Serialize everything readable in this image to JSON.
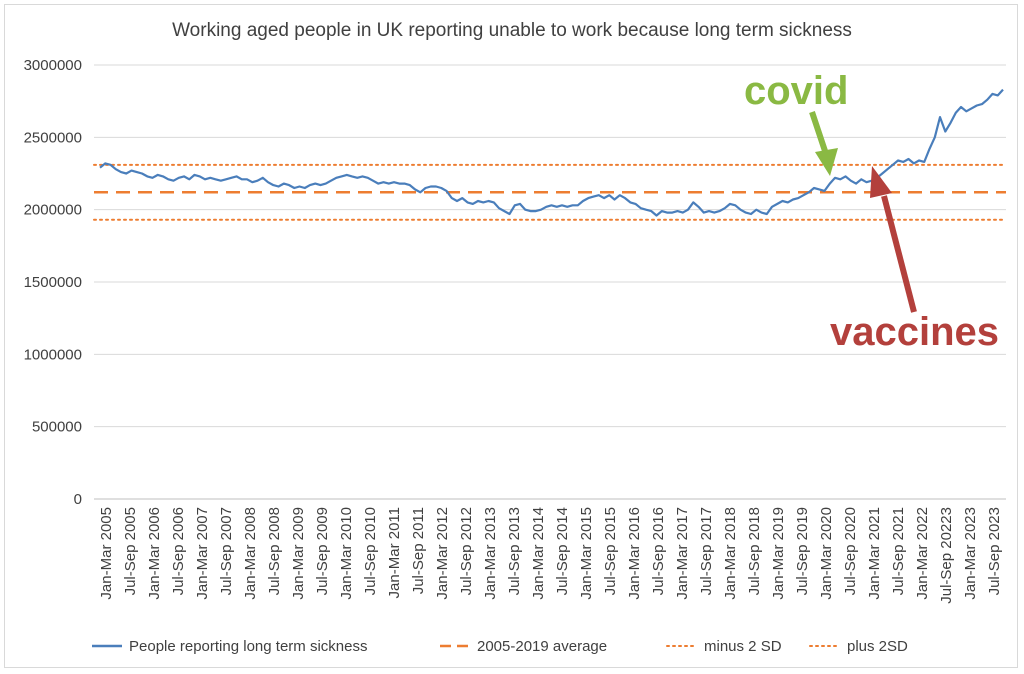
{
  "chart_data": {
    "type": "line",
    "title": "Working aged people in UK reporting unable to work because long term sickness",
    "xlabel": "",
    "ylabel": "",
    "ylim": [
      0,
      3000000
    ],
    "yticks": [
      "0",
      "500000",
      "1000000",
      "1500000",
      "2000000",
      "2500000",
      "3000000"
    ],
    "ytick_values": [
      0,
      500000,
      1000000,
      1500000,
      2000000,
      2500000,
      3000000
    ],
    "xtick_labels": [
      "Jan-Mar 2005",
      "Jul-Sep 2005",
      "Jan-Mar 2006",
      "Jul-Sep 2006",
      "Jan-Mar 2007",
      "Jul-Sep 2007",
      "Jan-Mar 2008",
      "Jul-Sep 2008",
      "Jan-Mar 2009",
      "Jul-Sep 2009",
      "Jan-Mar 2010",
      "Jul-Sep 2010",
      "Jan-Mar 2011",
      "Jul-Sep 2011",
      "Jan-Mar 2012",
      "Jul-Sep 2012",
      "Jan-Mar 2013",
      "Jul-Sep 2013",
      "Jan-Mar 2014",
      "Jul-Sep 2014",
      "Jan-Mar 2015",
      "Jul-Sep 2015",
      "Jan-Mar 2016",
      "Jul-Sep 2016",
      "Jan-Mar 2017",
      "Jul-Sep 2017",
      "Jan-Mar 2018",
      "Jul-Sep 2018",
      "Jan-Mar 2019",
      "Jul-Sep 2019",
      "Jan-Mar 2020",
      "Jul-Sep 2020",
      "Jan-Mar 2021",
      "Jul-Sep 2021",
      "Jan-Mar 2022",
      "Jul-Sep 20223",
      "Jan-Mar 2023",
      "Jul-Sep 2023"
    ],
    "grid": true,
    "legend_position": "bottom",
    "series": [
      {
        "name": "People reporting long term sickness",
        "color": "#4a7ebb",
        "style": "solid",
        "values": [
          2290000,
          2320000,
          2310000,
          2280000,
          2260000,
          2250000,
          2270000,
          2260000,
          2250000,
          2230000,
          2220000,
          2240000,
          2230000,
          2210000,
          2200000,
          2220000,
          2230000,
          2210000,
          2240000,
          2230000,
          2210000,
          2220000,
          2210000,
          2200000,
          2210000,
          2220000,
          2230000,
          2210000,
          2210000,
          2190000,
          2200000,
          2220000,
          2190000,
          2170000,
          2160000,
          2180000,
          2170000,
          2150000,
          2160000,
          2150000,
          2170000,
          2180000,
          2170000,
          2180000,
          2200000,
          2220000,
          2230000,
          2240000,
          2230000,
          2220000,
          2230000,
          2220000,
          2200000,
          2180000,
          2190000,
          2180000,
          2190000,
          2180000,
          2180000,
          2170000,
          2140000,
          2120000,
          2150000,
          2160000,
          2160000,
          2150000,
          2130000,
          2080000,
          2060000,
          2080000,
          2050000,
          2040000,
          2060000,
          2050000,
          2060000,
          2050000,
          2010000,
          1990000,
          1970000,
          2030000,
          2040000,
          2000000,
          1990000,
          1990000,
          2000000,
          2020000,
          2030000,
          2020000,
          2030000,
          2020000,
          2030000,
          2030000,
          2060000,
          2080000,
          2090000,
          2100000,
          2080000,
          2100000,
          2070000,
          2100000,
          2080000,
          2050000,
          2040000,
          2010000,
          2000000,
          1990000,
          1960000,
          1990000,
          1980000,
          1980000,
          1990000,
          1980000,
          2000000,
          2050000,
          2020000,
          1980000,
          1990000,
          1980000,
          1990000,
          2010000,
          2040000,
          2030000,
          2000000,
          1980000,
          1970000,
          2000000,
          1980000,
          1970000,
          2020000,
          2040000,
          2060000,
          2050000,
          2070000,
          2080000,
          2100000,
          2120000,
          2150000,
          2140000,
          2130000,
          2180000,
          2220000,
          2210000,
          2230000,
          2200000,
          2180000,
          2210000,
          2190000,
          2200000,
          2220000,
          2250000,
          2280000,
          2310000,
          2340000,
          2330000,
          2350000,
          2320000,
          2340000,
          2330000,
          2420000,
          2500000,
          2640000,
          2540000,
          2600000,
          2670000,
          2710000,
          2680000,
          2700000,
          2720000,
          2730000,
          2760000,
          2800000,
          2790000,
          2830000
        ]
      },
      {
        "name": "2005-2019 average",
        "color": "#ed7d31",
        "style": "dashed",
        "value": 2120000
      },
      {
        "name": "minus 2 SD",
        "color": "#ed7d31",
        "style": "dotted",
        "value": 1930000
      },
      {
        "name": "plus 2SD",
        "color": "#ed7d31",
        "style": "dotted",
        "value": 2310000
      }
    ],
    "annotations": [
      {
        "text": "covid",
        "color": "#8ab943"
      },
      {
        "text": "vaccines",
        "color": "#b3403c"
      }
    ]
  }
}
